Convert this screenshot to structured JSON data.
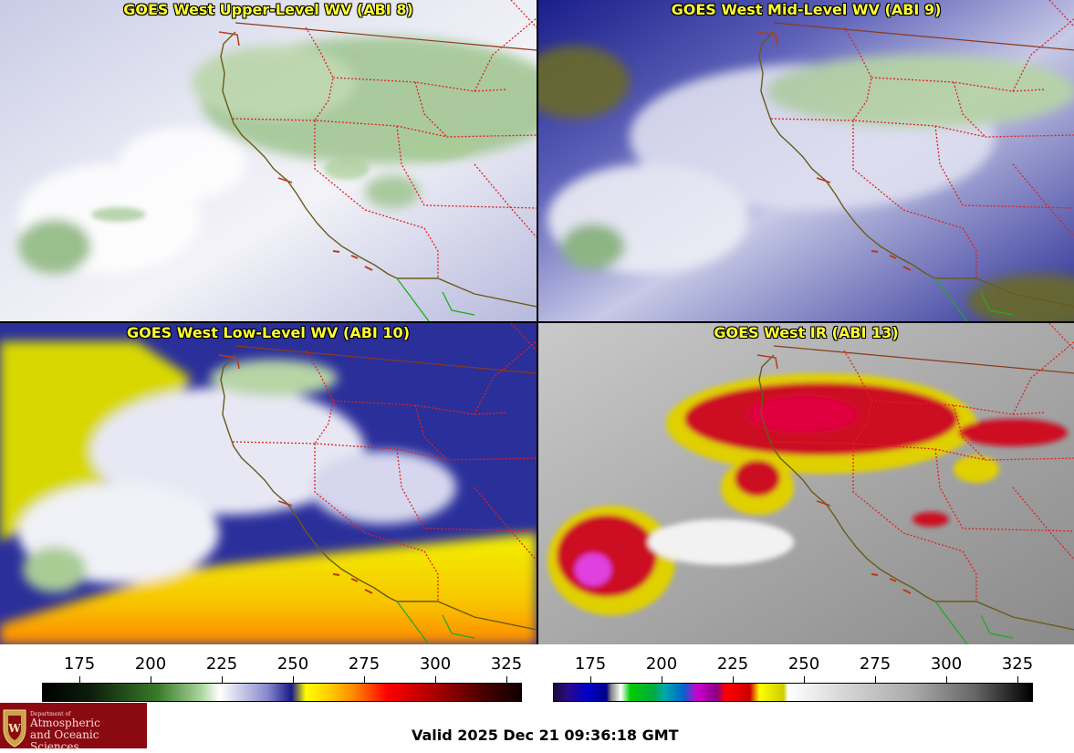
{
  "panels": [
    {
      "title": "GOES West Upper-Level WV (ABI 8)"
    },
    {
      "title": "GOES West Mid-Level WV (ABI 9)"
    },
    {
      "title": "GOES West Low-Level WV (ABI 10)"
    },
    {
      "title": "GOES West IR (ABI 13)"
    }
  ],
  "colorbars": {
    "wv": {
      "ticks": [
        "175",
        "200",
        "225",
        "250",
        "275",
        "300",
        "325"
      ]
    },
    "ir": {
      "ticks": [
        "175",
        "200",
        "225",
        "250",
        "275",
        "300",
        "325"
      ]
    }
  },
  "logo": {
    "line1": "Department of",
    "line2": "Atmospheric",
    "line3": "and Oceanic Sciences"
  },
  "valid_time": "Valid 2025 Dec 21 09:36:18 GMT",
  "colors": {
    "title_text": "#ffff33",
    "coastline": "#6b5a1a",
    "state_borders": "#e02020",
    "mexico_border": "#22aa22",
    "logo_background": "#8b0a12"
  }
}
